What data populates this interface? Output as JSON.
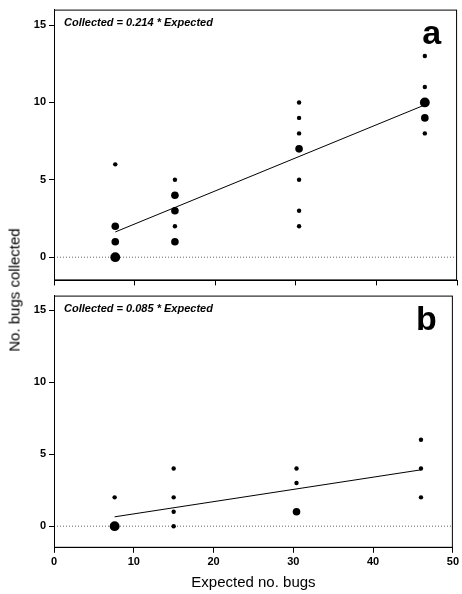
{
  "chart_data": [
    {
      "type": "scatter",
      "annotation": "Collected = 0.214 * Expected",
      "panel_label": "a",
      "y_label": "No. bugs collected",
      "x": [
        7.6,
        7.6,
        7.6,
        7.6,
        15,
        15,
        15,
        15,
        15,
        30.4,
        30.4,
        30.4,
        30.4,
        30.4,
        30.4,
        30.4,
        46,
        46,
        46,
        46,
        46
      ],
      "values": [
        6,
        2,
        1,
        0,
        5,
        4,
        3,
        2,
        1,
        10,
        9,
        8,
        7,
        5,
        3,
        2,
        13,
        11,
        10,
        9,
        8
      ],
      "counts": [
        1,
        3,
        3,
        5,
        1,
        3,
        3,
        1,
        3,
        1,
        1,
        1,
        3,
        1,
        1,
        1,
        1,
        1,
        5,
        3,
        1
      ],
      "fit": {
        "x": [
          7.6,
          46
        ],
        "values": [
          1.63,
          9.84
        ]
      },
      "reference_line": 0,
      "xlim": [
        0,
        50
      ],
      "xticks": [
        0,
        10,
        20,
        30,
        40,
        50
      ],
      "ylim": [
        -1.5,
        16
      ],
      "yticks": [
        0,
        5,
        10,
        15
      ],
      "grid": false,
      "tick_labels": "y",
      "color": "#000000",
      "marker": "circle"
    },
    {
      "type": "scatter",
      "annotation": "Collected = 0.085 * Expected",
      "panel_label": "b",
      "x_label": "Expected no. bugs",
      "x": [
        7.6,
        7.6,
        15,
        15,
        15,
        15,
        30.4,
        30.4,
        30.4,
        46,
        46,
        46
      ],
      "values": [
        2,
        0,
        4,
        2,
        1,
        0,
        4,
        3,
        1,
        6,
        4,
        2
      ],
      "counts": [
        1,
        5,
        1,
        1,
        1,
        1,
        1,
        1,
        3,
        1,
        1,
        1
      ],
      "fit": {
        "x": [
          7.6,
          46
        ],
        "values": [
          0.65,
          3.91
        ]
      },
      "reference_line": 0,
      "xlim": [
        0,
        50
      ],
      "xticks": [
        0,
        10,
        20,
        30,
        40,
        50
      ],
      "ylim": [
        -1.5,
        16
      ],
      "yticks": [
        0,
        5,
        10,
        15
      ],
      "grid": false,
      "color": "#000000",
      "marker": "circle"
    }
  ]
}
